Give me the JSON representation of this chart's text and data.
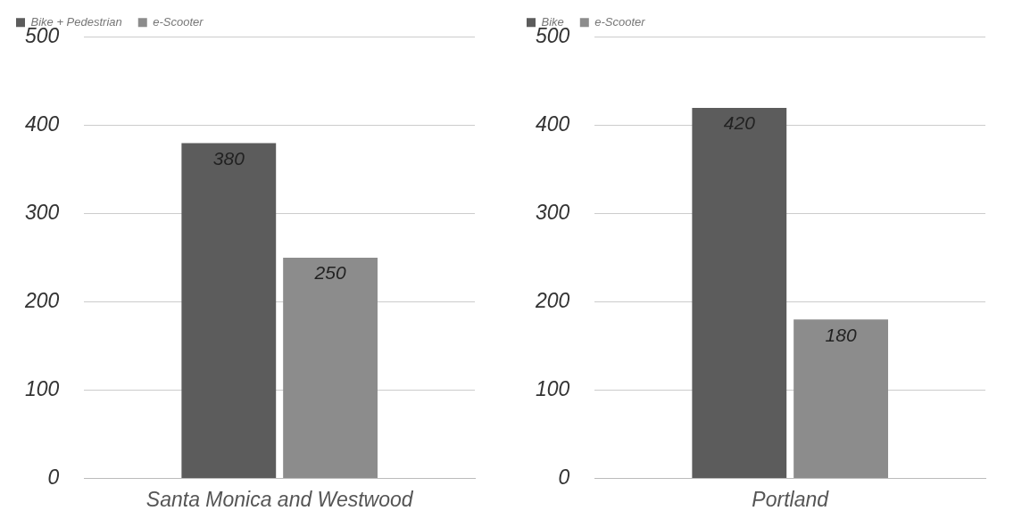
{
  "chart_data": [
    {
      "type": "bar",
      "categories": [
        "Santa Monica and Westwood"
      ],
      "series": [
        {
          "name": "Bike + Pedestrian",
          "color": "#5c5c5c",
          "values": [
            380
          ]
        },
        {
          "name": "e-Scooter",
          "color": "#8c8c8c",
          "values": [
            250
          ]
        }
      ],
      "ylim": [
        0,
        500
      ],
      "yticks": [
        0,
        100,
        200,
        300,
        400,
        500
      ],
      "grid": "y",
      "legend": "top left",
      "data_labels": true
    },
    {
      "type": "bar",
      "categories": [
        "Portland"
      ],
      "series": [
        {
          "name": "Bike",
          "color": "#5c5c5c",
          "values": [
            420
          ]
        },
        {
          "name": "e-Scooter",
          "color": "#8c8c8c",
          "values": [
            180
          ]
        }
      ],
      "ylim": [
        0,
        500
      ],
      "yticks": [
        0,
        100,
        200,
        300,
        400,
        500
      ],
      "grid": "y",
      "legend": "top left",
      "data_labels": true
    }
  ]
}
